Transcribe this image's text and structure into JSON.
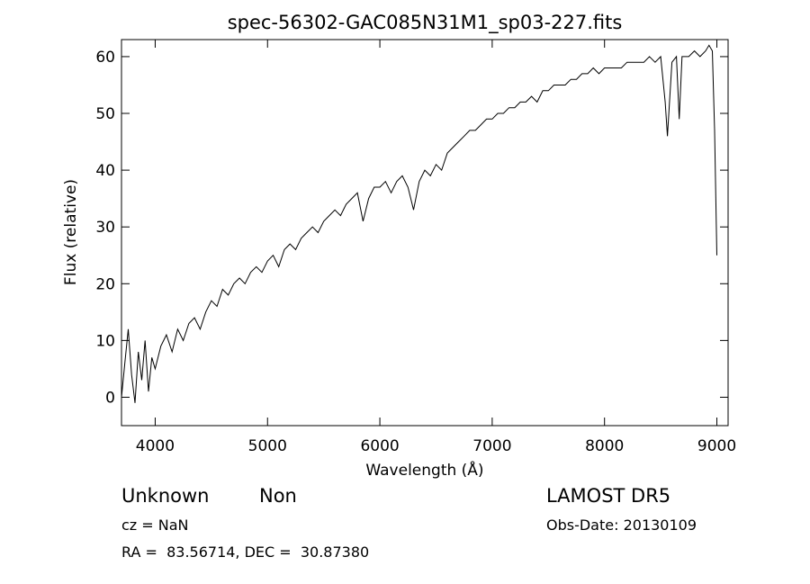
{
  "chart_data": {
    "type": "line",
    "title": "spec-56302-GAC085N31M1_sp03-227.fits",
    "xlabel": "Wavelength (Å)",
    "ylabel": "Flux (relative)",
    "xlim": [
      3700,
      9100
    ],
    "ylim": [
      -5,
      63
    ],
    "xticks": [
      4000,
      5000,
      6000,
      7000,
      8000,
      9000
    ],
    "yticks": [
      0,
      10,
      20,
      30,
      40,
      50,
      60
    ],
    "grid": false,
    "series": [
      {
        "x": [
          3700,
          3730,
          3760,
          3790,
          3820,
          3850,
          3880,
          3910,
          3940,
          3970,
          4000,
          4050,
          4100,
          4150,
          4200,
          4250,
          4300,
          4350,
          4400,
          4450,
          4500,
          4550,
          4600,
          4650,
          4700,
          4750,
          4800,
          4850,
          4900,
          4950,
          5000,
          5050,
          5100,
          5150,
          5200,
          5250,
          5300,
          5350,
          5400,
          5450,
          5500,
          5550,
          5600,
          5650,
          5700,
          5750,
          5800,
          5850,
          5900,
          5950,
          6000,
          6050,
          6100,
          6150,
          6200,
          6250,
          6300,
          6350,
          6400,
          6450,
          6500,
          6550,
          6600,
          6650,
          6700,
          6750,
          6800,
          6850,
          6900,
          6950,
          7000,
          7050,
          7100,
          7150,
          7200,
          7250,
          7300,
          7350,
          7400,
          7450,
          7500,
          7550,
          7600,
          7650,
          7700,
          7750,
          7800,
          7850,
          7900,
          7950,
          8000,
          8050,
          8100,
          8150,
          8200,
          8250,
          8300,
          8350,
          8400,
          8450,
          8500,
          8540,
          8560,
          8600,
          8640,
          8665,
          8690,
          8750,
          8800,
          8850,
          8900,
          8930,
          8960,
          8980,
          9000
        ],
        "y": [
          0,
          6,
          12,
          4,
          -1,
          8,
          3,
          10,
          1,
          7,
          5,
          9,
          11,
          8,
          12,
          10,
          13,
          14,
          12,
          15,
          17,
          16,
          19,
          18,
          20,
          21,
          20,
          22,
          23,
          22,
          24,
          25,
          23,
          26,
          27,
          26,
          28,
          29,
          30,
          29,
          31,
          32,
          33,
          32,
          34,
          35,
          36,
          31,
          35,
          37,
          37,
          38,
          36,
          38,
          39,
          37,
          33,
          38,
          40,
          39,
          41,
          40,
          43,
          44,
          45,
          46,
          47,
          47,
          48,
          49,
          49,
          50,
          50,
          51,
          51,
          52,
          52,
          53,
          52,
          54,
          54,
          55,
          55,
          55,
          56,
          56,
          57,
          57,
          58,
          57,
          58,
          58,
          58,
          58,
          59,
          59,
          59,
          59,
          60,
          59,
          60,
          52,
          46,
          59,
          60,
          49,
          60,
          60,
          61,
          60,
          61,
          62,
          61,
          47,
          25
        ]
      }
    ]
  },
  "info": {
    "object_class": "Unknown",
    "object_subclass": "Non",
    "survey": "LAMOST DR5",
    "cz": "cz = NaN",
    "obs_date": "Obs-Date: 20130109",
    "coords": "RA =  83.56714, DEC =  30.87380"
  }
}
